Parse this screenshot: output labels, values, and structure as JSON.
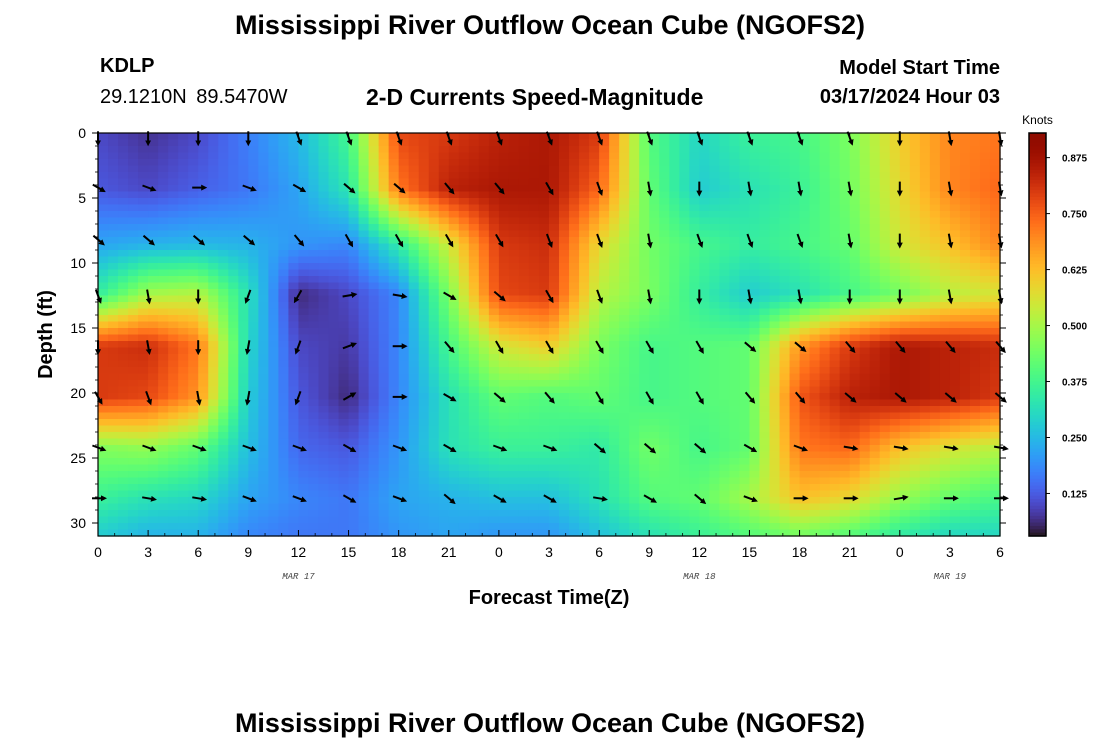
{
  "header": {
    "title": "Mississippi River Outflow Ocean Cube (NGOFS2)",
    "station": "KDLP",
    "coordinates": "29.1210N  89.5470W",
    "subtitle": "2-D Currents Speed-Magnitude",
    "model_start_label": "Model Start Time",
    "model_start_value": "03/17/2024 Hour 03"
  },
  "footer": {
    "title": "Mississippi River Outflow Ocean Cube (NGOFS2)"
  },
  "chart_data": {
    "type": "heatmap",
    "title": "2-D Currents Speed-Magnitude",
    "xlabel": "Forecast Time(Z)",
    "ylabel": "Depth (ft)",
    "x_ticks": [
      "0",
      "3",
      "6",
      "9",
      "12",
      "15",
      "18",
      "21",
      "0",
      "3",
      "6",
      "9",
      "12",
      "15",
      "18",
      "21",
      "0",
      "3",
      "6"
    ],
    "x_range_hours": [
      0,
      54
    ],
    "day_labels": [
      {
        "text": "MAR 17",
        "hour": 12
      },
      {
        "text": "MAR 18",
        "hour": 36
      },
      {
        "text": "MAR 19",
        "hour": 51
      }
    ],
    "y_ticks": [
      0,
      5,
      10,
      15,
      20,
      25,
      30
    ],
    "y_range": [
      0,
      31
    ],
    "y_reversed": true,
    "colorbar": {
      "unit": "Knots",
      "ticks": [
        "0.125",
        "0.250",
        "0.375",
        "0.500",
        "0.625",
        "0.750",
        "0.875"
      ],
      "range": [
        0.03,
        0.93
      ],
      "colormap": "turbo"
    },
    "grid_hours": [
      0,
      3,
      6,
      9,
      12,
      15,
      18,
      21,
      24,
      27,
      30,
      33,
      36,
      39,
      42,
      45,
      48,
      51,
      54
    ],
    "grid_depths": [
      0,
      4.3,
      8.6,
      12.4,
      16.4,
      20.3,
      24.2,
      28.1,
      31
    ],
    "speed_knots": [
      [
        0.1,
        0.07,
        0.1,
        0.17,
        0.25,
        0.38,
        0.78,
        0.8,
        0.84,
        0.86,
        0.8,
        0.4,
        0.3,
        0.36,
        0.38,
        0.45,
        0.6,
        0.7,
        0.72
      ],
      [
        0.12,
        0.1,
        0.13,
        0.16,
        0.22,
        0.33,
        0.72,
        0.84,
        0.86,
        0.86,
        0.74,
        0.42,
        0.28,
        0.32,
        0.36,
        0.44,
        0.58,
        0.7,
        0.74
      ],
      [
        0.22,
        0.24,
        0.25,
        0.24,
        0.2,
        0.18,
        0.34,
        0.55,
        0.8,
        0.82,
        0.58,
        0.44,
        0.38,
        0.35,
        0.38,
        0.42,
        0.55,
        0.62,
        0.7
      ],
      [
        0.35,
        0.5,
        0.52,
        0.32,
        0.06,
        0.1,
        0.18,
        0.45,
        0.78,
        0.8,
        0.52,
        0.45,
        0.35,
        0.28,
        0.32,
        0.38,
        0.44,
        0.52,
        0.56
      ],
      [
        0.8,
        0.82,
        0.72,
        0.3,
        0.1,
        0.08,
        0.18,
        0.38,
        0.55,
        0.6,
        0.45,
        0.38,
        0.4,
        0.42,
        0.68,
        0.8,
        0.86,
        0.84,
        0.82
      ],
      [
        0.8,
        0.78,
        0.68,
        0.28,
        0.12,
        0.06,
        0.18,
        0.32,
        0.42,
        0.4,
        0.42,
        0.38,
        0.4,
        0.42,
        0.76,
        0.84,
        0.86,
        0.84,
        0.8
      ],
      [
        0.46,
        0.48,
        0.42,
        0.26,
        0.14,
        0.12,
        0.2,
        0.32,
        0.36,
        0.36,
        0.34,
        0.44,
        0.38,
        0.42,
        0.72,
        0.74,
        0.62,
        0.56,
        0.52
      ],
      [
        0.36,
        0.32,
        0.3,
        0.22,
        0.18,
        0.16,
        0.22,
        0.24,
        0.26,
        0.26,
        0.32,
        0.4,
        0.42,
        0.5,
        0.62,
        0.58,
        0.48,
        0.42,
        0.38
      ],
      [
        0.28,
        0.24,
        0.24,
        0.18,
        0.16,
        0.16,
        0.2,
        0.22,
        0.2,
        0.2,
        0.26,
        0.32,
        0.36,
        0.4,
        0.44,
        0.4,
        0.34,
        0.3,
        0.3
      ]
    ],
    "vector_hours": [
      0,
      3,
      6,
      9,
      12,
      15,
      18,
      21,
      24,
      27,
      30,
      33,
      36,
      39,
      42,
      45,
      48,
      51,
      54
    ],
    "vector_depths": [
      0.1,
      4.2,
      8.2,
      12.5,
      16.4,
      20.3,
      24.2,
      28.1
    ],
    "vector_angles_deg": [
      [
        90,
        90,
        90,
        90,
        70,
        70,
        70,
        70,
        70,
        70,
        70,
        70,
        70,
        70,
        70,
        70,
        90,
        80,
        80
      ],
      [
        30,
        20,
        0,
        20,
        30,
        40,
        40,
        50,
        50,
        60,
        70,
        80,
        90,
        80,
        80,
        80,
        90,
        80,
        80
      ],
      [
        40,
        40,
        40,
        40,
        50,
        60,
        60,
        60,
        60,
        70,
        70,
        80,
        70,
        70,
        70,
        80,
        90,
        80,
        80
      ],
      [
        70,
        80,
        90,
        110,
        120,
        -10,
        10,
        30,
        40,
        60,
        70,
        80,
        90,
        80,
        80,
        90,
        90,
        80,
        80
      ],
      [
        90,
        80,
        90,
        100,
        110,
        -20,
        0,
        50,
        60,
        60,
        60,
        60,
        60,
        40,
        40,
        50,
        50,
        50,
        50
      ],
      [
        60,
        70,
        80,
        100,
        110,
        -30,
        0,
        30,
        40,
        50,
        60,
        60,
        60,
        50,
        50,
        40,
        40,
        40,
        40
      ],
      [
        20,
        20,
        20,
        20,
        20,
        30,
        20,
        30,
        20,
        20,
        40,
        40,
        40,
        30,
        20,
        10,
        10,
        10,
        10
      ],
      [
        0,
        10,
        10,
        20,
        20,
        30,
        20,
        40,
        30,
        30,
        10,
        30,
        40,
        20,
        0,
        0,
        -10,
        0,
        0
      ]
    ]
  }
}
